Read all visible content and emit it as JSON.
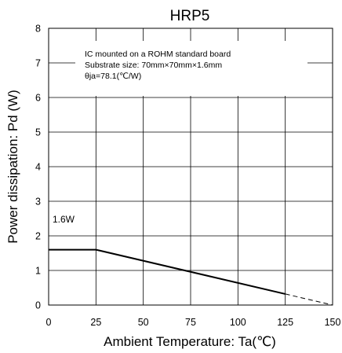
{
  "chart_data": {
    "type": "line",
    "title": "HRP5",
    "xlabel": "Ambient Temperature: Ta(℃)",
    "ylabel": "Power dissipation: Pd (W)",
    "xlim": [
      0,
      150
    ],
    "ylim": [
      0,
      8
    ],
    "x_ticks": [
      "0",
      "25",
      "50",
      "75",
      "100",
      "125",
      "150"
    ],
    "y_ticks": [
      "0",
      "1",
      "2",
      "3",
      "4",
      "5",
      "6",
      "7",
      "8"
    ],
    "grid": true,
    "annotations": [
      "IC mounted on a ROHM standard board",
      "Substrate size: 70mm×70mm×1.6mm",
      "θja=78.1(℃/W)"
    ],
    "level_label": "1.6W",
    "series": [
      {
        "style": "solid",
        "x": [
          0,
          25,
          125
        ],
        "y": [
          1.6,
          1.6,
          0.32
        ]
      },
      {
        "style": "dashed",
        "x": [
          125,
          150
        ],
        "y": [
          0.32,
          0
        ]
      }
    ]
  }
}
